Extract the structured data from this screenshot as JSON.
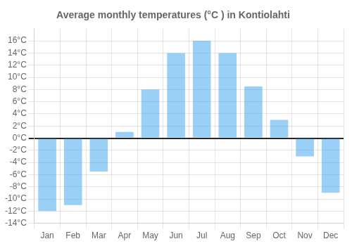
{
  "chart_data": {
    "type": "bar",
    "title": "Average monthly temperatures (°C ) in Kontiolahti",
    "categories": [
      "Jan",
      "Feb",
      "Mar",
      "Apr",
      "May",
      "Jun",
      "Jul",
      "Aug",
      "Sep",
      "Oct",
      "Nov",
      "Dec"
    ],
    "values": [
      -12,
      -11,
      -5.5,
      1,
      8,
      14,
      16,
      14,
      8.5,
      3,
      -3,
      -9
    ],
    "ylim": [
      -14,
      18
    ],
    "yticks": [
      {
        "value": -14,
        "label": "-14°C"
      },
      {
        "value": -12,
        "label": "-12°C"
      },
      {
        "value": -10,
        "label": "-10°C"
      },
      {
        "value": -8,
        "label": "-8°C"
      },
      {
        "value": -6,
        "label": "-6°C"
      },
      {
        "value": -4,
        "label": "-4°C"
      },
      {
        "value": -2,
        "label": "-2°C"
      },
      {
        "value": 0,
        "label": "0°C"
      },
      {
        "value": 2,
        "label": "2°C"
      },
      {
        "value": 4,
        "label": "4°C"
      },
      {
        "value": 6,
        "label": "6°C"
      },
      {
        "value": 8,
        "label": "8°C"
      },
      {
        "value": 10,
        "label": "10°C"
      },
      {
        "value": 12,
        "label": "12°C"
      },
      {
        "value": 14,
        "label": "14°C"
      },
      {
        "value": 16,
        "label": "16°C"
      }
    ],
    "grid": true
  }
}
